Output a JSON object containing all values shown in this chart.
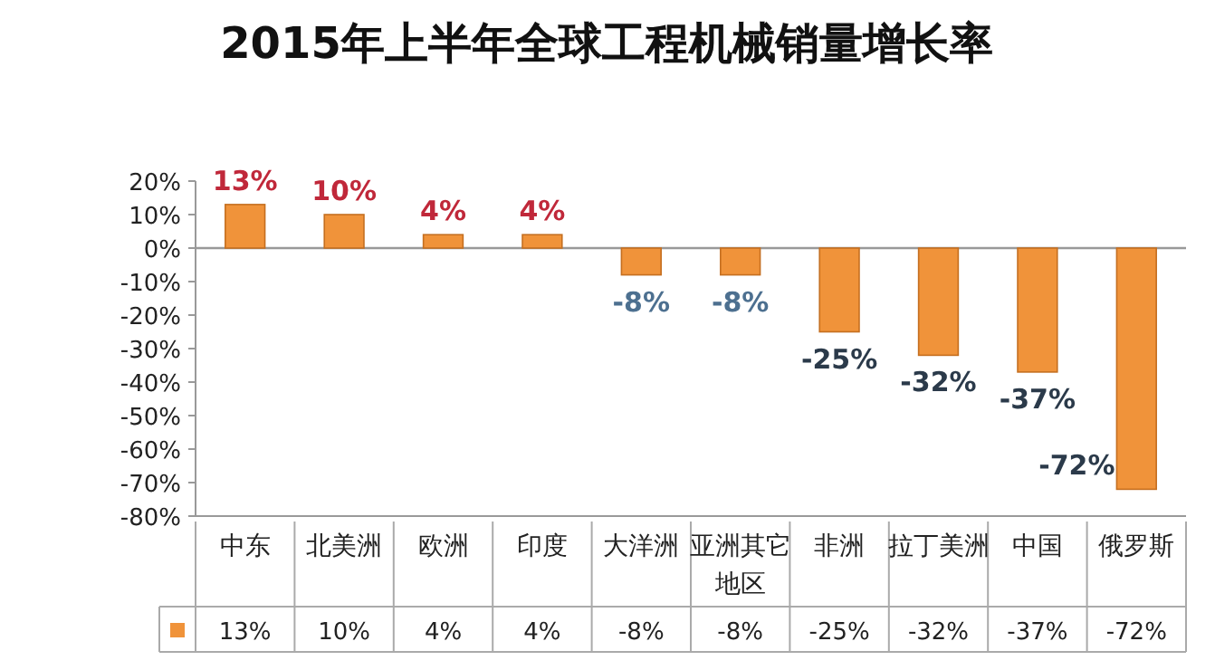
{
  "chart_data": {
    "type": "bar",
    "title": "2015年上半年全球工程机械销量增长率",
    "categories": [
      "中东",
      "北美洲",
      "欧洲",
      "印度",
      "大洋洲",
      "亚洲其它地区",
      "非洲",
      "拉丁美洲",
      "中国",
      "俄罗斯"
    ],
    "values": [
      13,
      10,
      4,
      4,
      -8,
      -8,
      -25,
      -32,
      -37,
      -72
    ],
    "value_labels": [
      "13%",
      "10%",
      "4%",
      "4%",
      "-8%",
      "-8%",
      "-25%",
      "-32%",
      "-37%",
      "-72%"
    ],
    "color": "#f0933a",
    "ylim": [
      -80,
      20
    ],
    "yticks": [
      {
        "value": 20,
        "label": "20%"
      },
      {
        "value": 10,
        "label": "10%"
      },
      {
        "value": 0,
        "label": "0%"
      },
      {
        "value": -10,
        "label": "-10%"
      },
      {
        "value": -20,
        "label": "-20%"
      },
      {
        "value": -30,
        "label": "-30%"
      },
      {
        "value": -40,
        "label": "-40%"
      },
      {
        "value": -50,
        "label": "-50%"
      },
      {
        "value": -60,
        "label": "-60%"
      },
      {
        "value": -70,
        "label": "-70%"
      },
      {
        "value": -80,
        "label": "-80%"
      }
    ],
    "data_labels": true
  }
}
